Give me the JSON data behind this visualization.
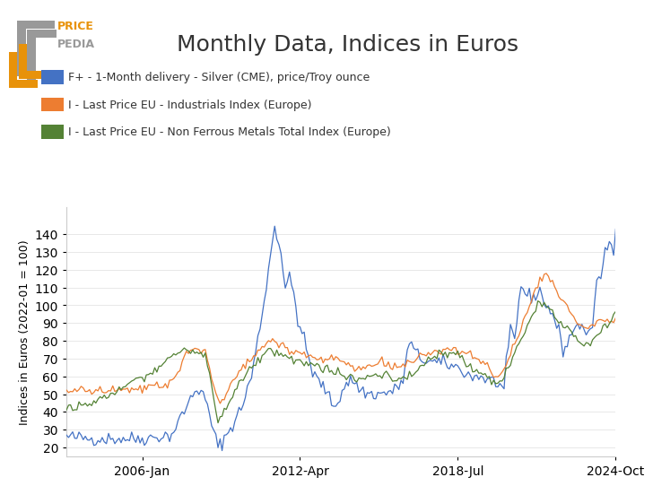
{
  "title": "Monthly Data, Indices in Euros",
  "ylabel": "Indices in Euros (2022-01 = 100)",
  "ylim": [
    15,
    155
  ],
  "yticks": [
    20,
    30,
    40,
    50,
    60,
    70,
    80,
    90,
    100,
    110,
    120,
    130,
    140
  ],
  "xtick_labels": [
    "2006-Jan",
    "2012-Apr",
    "2018-Jul",
    "2024-Oct"
  ],
  "legend_labels": [
    "F+ - 1-Month delivery - Silver (CME), price/Troy ounce",
    "I - Last Price EU - Industrials Index (Europe)",
    "I - Last Price EU - Non Ferrous Metals Total Index (Europe)"
  ],
  "colors": {
    "silver": "#4472C4",
    "industrials": "#ED7D31",
    "nonferrous": "#548235"
  },
  "background_color": "#ffffff",
  "title_fontsize": 18,
  "legend_fontsize": 9,
  "ylabel_fontsize": 9,
  "tick_labelsize": 10
}
